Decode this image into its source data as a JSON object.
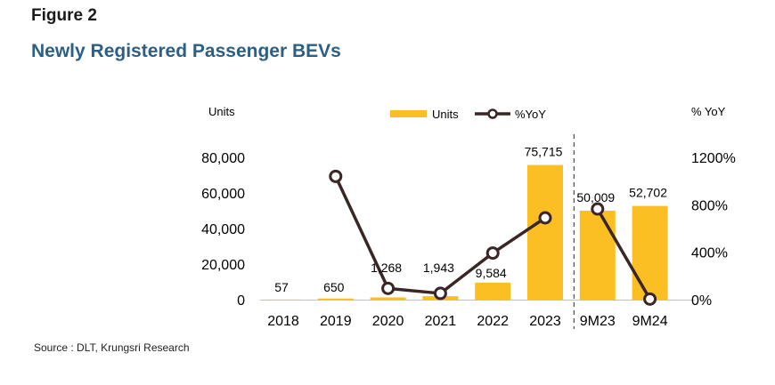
{
  "figure_label": "Figure 2",
  "title": "Newly Registered Passenger BEVs",
  "source": "Source : DLT, Krungsri Research",
  "colors": {
    "bar": "#FBBF24",
    "line": "#3B2626",
    "divider": "#555555",
    "title": "#2b5f86"
  },
  "chart_data": {
    "type": "bar",
    "categories": [
      "2018",
      "2019",
      "2020",
      "2021",
      "2022",
      "2023",
      "9M23",
      "9M24"
    ],
    "series": [
      {
        "name": "Units",
        "type": "bar",
        "axis": "left",
        "values": [
          57,
          650,
          1268,
          1943,
          9584,
          75715,
          50009,
          52702
        ],
        "labels": [
          "57",
          "650",
          "1,268",
          "1,943",
          "9,584",
          "75,715",
          "50,009",
          "52,702"
        ]
      },
      {
        "name": "%YoY",
        "type": "line",
        "axis": "right",
        "values": [
          null,
          1040,
          95,
          53,
          393,
          690,
          null,
          null
        ]
      },
      {
        "name": "%YoY",
        "type": "line",
        "axis": "right",
        "values": [
          null,
          null,
          null,
          null,
          null,
          null,
          765,
          5
        ]
      }
    ],
    "left_axis": {
      "label": "Units",
      "ylim": [
        0,
        80000
      ],
      "ticks": [
        0,
        20000,
        40000,
        60000,
        80000
      ],
      "tick_labels": [
        "0",
        "20,000",
        "40,000",
        "60,000",
        "80,000"
      ]
    },
    "right_axis": {
      "label": "% YoY",
      "ylim": [
        0,
        1200
      ],
      "ticks": [
        0,
        400,
        800,
        1200
      ],
      "tick_labels": [
        "0%",
        "400%",
        "800%",
        "1200%"
      ]
    },
    "legend": {
      "placement": "top-center",
      "entries": [
        "Units",
        "%YoY"
      ]
    },
    "grid": false
  }
}
